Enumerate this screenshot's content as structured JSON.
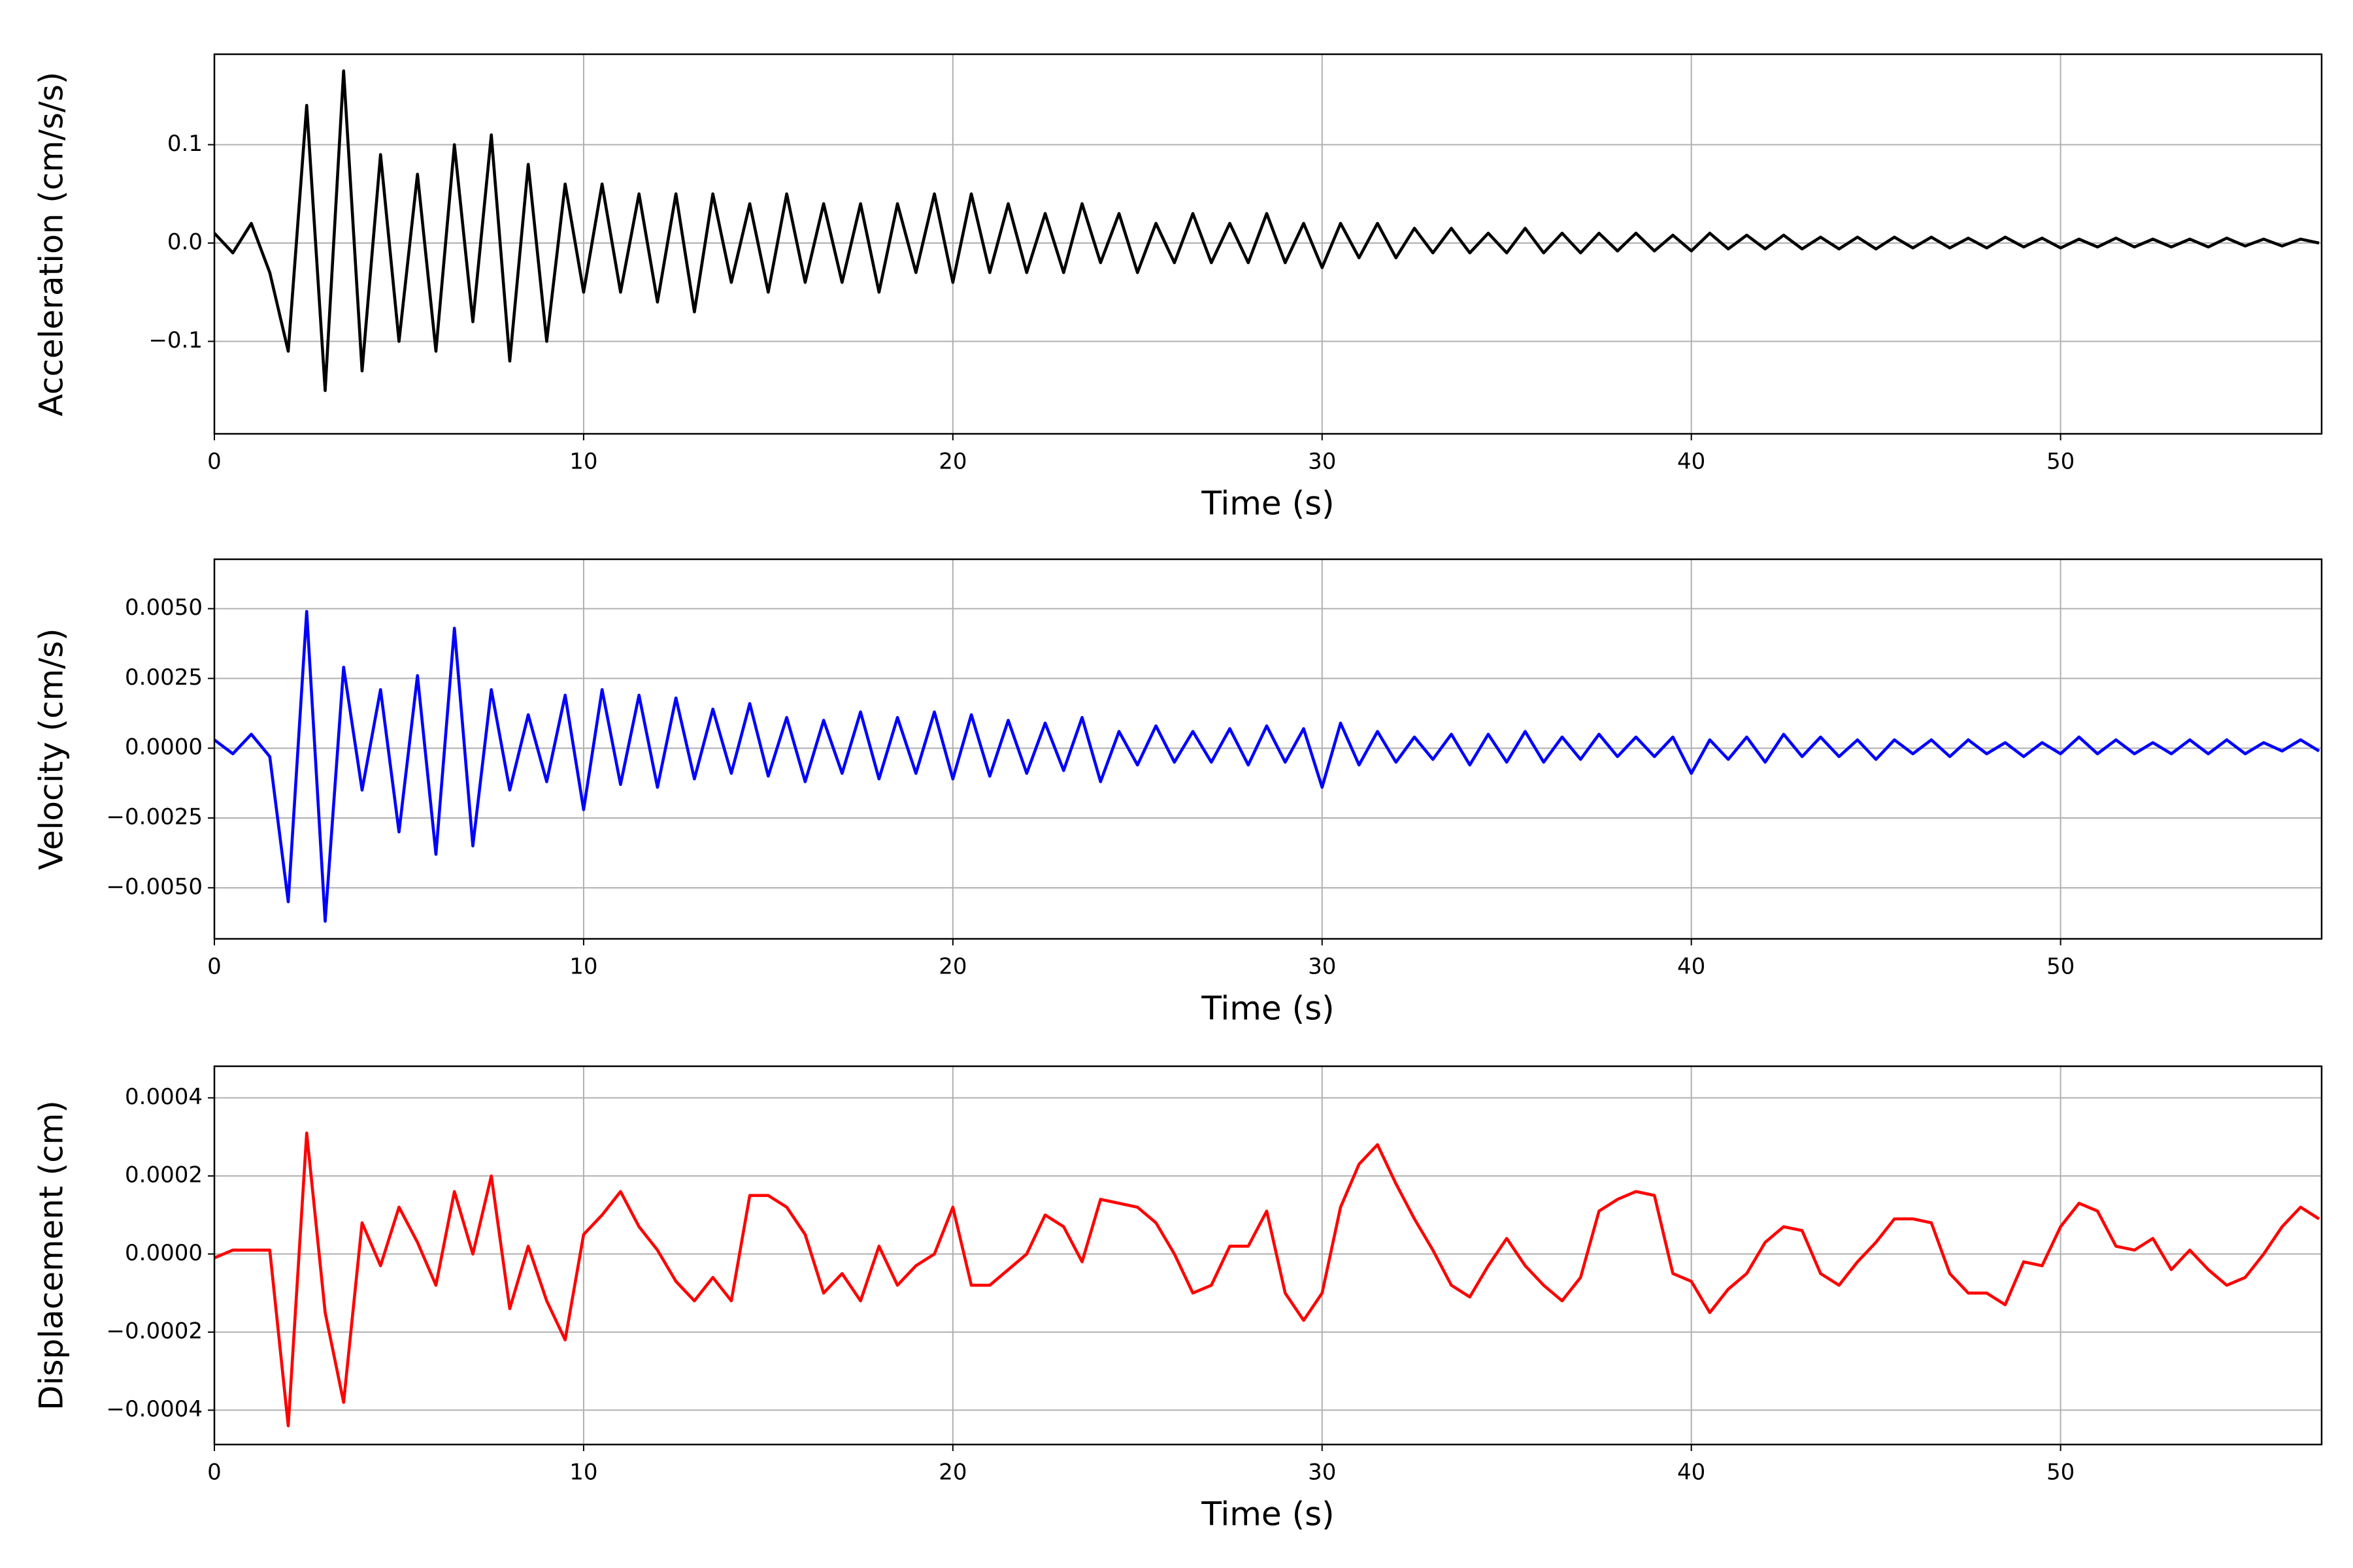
{
  "chart_data": [
    {
      "type": "line",
      "ylabel": "Acceleration (cm/s/s)",
      "xlabel": "Time (s)",
      "grid": true,
      "xlim": [
        0,
        57.07
      ],
      "xticks": [
        0,
        10,
        20,
        30,
        40,
        50
      ],
      "ylim": [
        -0.194,
        0.192
      ],
      "yticks": [
        {
          "value": -0.1,
          "label": "−0.1"
        },
        {
          "value": 0,
          "label": "0.0"
        },
        {
          "value": 0.1,
          "label": "0.1"
        }
      ],
      "x": [
        0,
        0.5,
        1,
        1.5,
        2,
        2.5,
        3,
        3.5,
        4,
        4.5,
        5,
        5.5,
        6,
        6.5,
        7,
        7.5,
        8,
        8.5,
        9,
        9.5,
        10,
        10.5,
        11,
        11.5,
        12,
        12.5,
        13,
        13.5,
        14,
        14.5,
        15,
        15.5,
        16,
        16.5,
        17,
        17.5,
        18,
        18.5,
        19,
        19.5,
        20,
        20.5,
        21,
        21.5,
        22,
        22.5,
        23,
        23.5,
        24,
        24.5,
        25,
        25.5,
        26,
        26.5,
        27,
        27.5,
        28,
        28.5,
        29,
        29.5,
        30,
        30.5,
        31,
        31.5,
        32,
        32.5,
        33,
        33.5,
        34,
        34.5,
        35,
        35.5,
        36,
        36.5,
        37,
        37.5,
        38,
        38.5,
        39,
        39.5,
        40,
        40.5,
        41,
        41.5,
        42,
        42.5,
        43,
        43.5,
        44,
        44.5,
        45,
        45.5,
        46,
        46.5,
        47,
        47.5,
        48,
        48.5,
        49,
        49.5,
        50,
        50.5,
        51,
        51.5,
        52,
        52.5,
        53,
        53.5,
        54,
        54.5,
        55,
        55.5,
        56,
        56.5,
        57
      ],
      "series": [
        {
          "color": "#000000",
          "values": [
            0.01,
            -0.01,
            0.02,
            -0.03,
            -0.11,
            0.14,
            -0.15,
            0.175,
            -0.13,
            0.09,
            -0.1,
            0.07,
            -0.11,
            0.1,
            -0.08,
            0.11,
            -0.12,
            0.08,
            -0.1,
            0.06,
            -0.05,
            0.06,
            -0.05,
            0.05,
            -0.06,
            0.05,
            -0.07,
            0.05,
            -0.04,
            0.04,
            -0.05,
            0.05,
            -0.04,
            0.04,
            -0.04,
            0.04,
            -0.05,
            0.04,
            -0.03,
            0.05,
            -0.04,
            0.05,
            -0.03,
            0.04,
            -0.03,
            0.03,
            -0.03,
            0.04,
            -0.02,
            0.03,
            -0.03,
            0.02,
            -0.02,
            0.03,
            -0.02,
            0.02,
            -0.02,
            0.03,
            -0.02,
            0.02,
            -0.025,
            0.02,
            -0.015,
            0.02,
            -0.015,
            0.015,
            -0.01,
            0.015,
            -0.01,
            0.01,
            -0.01,
            0.015,
            -0.01,
            0.01,
            -0.01,
            0.01,
            -0.008,
            0.01,
            -0.008,
            0.008,
            -0.008,
            0.01,
            -0.006,
            0.008,
            -0.006,
            0.008,
            -0.006,
            0.006,
            -0.006,
            0.006,
            -0.006,
            0.006,
            -0.005,
            0.006,
            -0.005,
            0.005,
            -0.005,
            0.006,
            -0.004,
            0.005,
            -0.005,
            0.004,
            -0.004,
            0.005,
            -0.004,
            0.004,
            -0.004,
            0.004,
            -0.004,
            0.005,
            -0.003,
            0.004,
            -0.003,
            0.004,
            0.0
          ]
        }
      ]
    },
    {
      "type": "line",
      "ylabel": "Velocity (cm/s)",
      "xlabel": "Time (s)",
      "grid": true,
      "xlim": [
        0,
        57.07
      ],
      "xticks": [
        0,
        10,
        20,
        30,
        40,
        50
      ],
      "ylim": [
        -0.00683,
        0.00677
      ],
      "yticks": [
        {
          "value": -0.005,
          "label": "−0.0050"
        },
        {
          "value": -0.0025,
          "label": "−0.0025"
        },
        {
          "value": 0,
          "label": "0.0000"
        },
        {
          "value": 0.0025,
          "label": "0.0025"
        },
        {
          "value": 0.005,
          "label": "0.0050"
        }
      ],
      "x": [
        0,
        0.5,
        1,
        1.5,
        2,
        2.5,
        3,
        3.5,
        4,
        4.5,
        5,
        5.5,
        6,
        6.5,
        7,
        7.5,
        8,
        8.5,
        9,
        9.5,
        10,
        10.5,
        11,
        11.5,
        12,
        12.5,
        13,
        13.5,
        14,
        14.5,
        15,
        15.5,
        16,
        16.5,
        17,
        17.5,
        18,
        18.5,
        19,
        19.5,
        20,
        20.5,
        21,
        21.5,
        22,
        22.5,
        23,
        23.5,
        24,
        24.5,
        25,
        25.5,
        26,
        26.5,
        27,
        27.5,
        28,
        28.5,
        29,
        29.5,
        30,
        30.5,
        31,
        31.5,
        32,
        32.5,
        33,
        33.5,
        34,
        34.5,
        35,
        35.5,
        36,
        36.5,
        37,
        37.5,
        38,
        38.5,
        39,
        39.5,
        40,
        40.5,
        41,
        41.5,
        42,
        42.5,
        43,
        43.5,
        44,
        44.5,
        45,
        45.5,
        46,
        46.5,
        47,
        47.5,
        48,
        48.5,
        49,
        49.5,
        50,
        50.5,
        51,
        51.5,
        52,
        52.5,
        53,
        53.5,
        54,
        54.5,
        55,
        55.5,
        56,
        56.5,
        57
      ],
      "series": [
        {
          "color": "#0000ff",
          "values": [
            0.0003,
            -0.0002,
            0.0005,
            -0.0003,
            -0.0055,
            0.0049,
            -0.0062,
            0.0029,
            -0.0015,
            0.0021,
            -0.003,
            0.0026,
            -0.0038,
            0.0043,
            -0.0035,
            0.0021,
            -0.0015,
            0.0012,
            -0.0012,
            0.0019,
            -0.0022,
            0.0021,
            -0.0013,
            0.0019,
            -0.0014,
            0.0018,
            -0.0011,
            0.0014,
            -0.0009,
            0.0016,
            -0.001,
            0.0011,
            -0.0012,
            0.001,
            -0.0009,
            0.0013,
            -0.0011,
            0.0011,
            -0.0009,
            0.0013,
            -0.0011,
            0.0012,
            -0.001,
            0.001,
            -0.0009,
            0.0009,
            -0.0008,
            0.0011,
            -0.0012,
            0.0006,
            -0.0006,
            0.0008,
            -0.0005,
            0.0006,
            -0.0005,
            0.0007,
            -0.0006,
            0.0008,
            -0.0005,
            0.0007,
            -0.0014,
            0.0009,
            -0.0006,
            0.0006,
            -0.0005,
            0.0004,
            -0.0004,
            0.0005,
            -0.0006,
            0.0005,
            -0.0005,
            0.0006,
            -0.0005,
            0.0004,
            -0.0004,
            0.0005,
            -0.0003,
            0.0004,
            -0.0003,
            0.0004,
            -0.0009,
            0.0003,
            -0.0004,
            0.0004,
            -0.0005,
            0.0005,
            -0.0003,
            0.0004,
            -0.0003,
            0.0003,
            -0.0004,
            0.0003,
            -0.0002,
            0.0003,
            -0.0003,
            0.0003,
            -0.0002,
            0.0002,
            -0.0003,
            0.0002,
            -0.0002,
            0.0004,
            -0.0002,
            0.0003,
            -0.0002,
            0.0002,
            -0.0002,
            0.0003,
            -0.0002,
            0.0003,
            -0.0002,
            0.0002,
            -0.0001,
            0.0003,
            -0.0001
          ]
        }
      ]
    },
    {
      "type": "line",
      "ylabel": "Displacement (cm)",
      "xlabel": "Time (s)",
      "grid": true,
      "xlim": [
        0,
        57.07
      ],
      "xticks": [
        0,
        10,
        20,
        30,
        40,
        50
      ],
      "ylim": [
        -0.000488,
        0.000481
      ],
      "yticks": [
        {
          "value": -0.0004,
          "label": "−0.0004"
        },
        {
          "value": -0.0002,
          "label": "−0.0002"
        },
        {
          "value": 0,
          "label": "0.0000"
        },
        {
          "value": 0.0002,
          "label": "0.0002"
        },
        {
          "value": 0.0004,
          "label": "0.0004"
        }
      ],
      "x": [
        0,
        0.5,
        1,
        1.5,
        2,
        2.5,
        3,
        3.5,
        4,
        4.5,
        5,
        5.5,
        6,
        6.5,
        7,
        7.5,
        8,
        8.5,
        9,
        9.5,
        10,
        10.5,
        11,
        11.5,
        12,
        12.5,
        13,
        13.5,
        14,
        14.5,
        15,
        15.5,
        16,
        16.5,
        17,
        17.5,
        18,
        18.5,
        19,
        19.5,
        20,
        20.5,
        21,
        21.5,
        22,
        22.5,
        23,
        23.5,
        24,
        24.5,
        25,
        25.5,
        26,
        26.5,
        27,
        27.5,
        28,
        28.5,
        29,
        29.5,
        30,
        30.5,
        31,
        31.5,
        32,
        32.5,
        33,
        33.5,
        34,
        34.5,
        35,
        35.5,
        36,
        36.5,
        37,
        37.5,
        38,
        38.5,
        39,
        39.5,
        40,
        40.5,
        41,
        41.5,
        42,
        42.5,
        43,
        43.5,
        44,
        44.5,
        45,
        45.5,
        46,
        46.5,
        47,
        47.5,
        48,
        48.5,
        49,
        49.5,
        50,
        50.5,
        51,
        51.5,
        52,
        52.5,
        53,
        53.5,
        54,
        54.5,
        55,
        55.5,
        56,
        56.5,
        57
      ],
      "series": [
        {
          "color": "#ff0000",
          "values": [
            -1e-05,
            1e-05,
            1e-05,
            1e-05,
            -0.00044,
            0.00031,
            -0.00015,
            -0.00038,
            8e-05,
            -3e-05,
            0.00012,
            3e-05,
            -8e-05,
            0.00016,
            0.0,
            0.0002,
            -0.00014,
            2e-05,
            -0.00012,
            -0.00022,
            5e-05,
            0.0001,
            0.00016,
            7e-05,
            1e-05,
            -7e-05,
            -0.00012,
            -6e-05,
            -0.00012,
            0.00015,
            0.00015,
            0.00012,
            5e-05,
            -0.0001,
            -5e-05,
            -0.00012,
            2e-05,
            -8e-05,
            -3e-05,
            0.0,
            0.00012,
            -8e-05,
            -8e-05,
            -4e-05,
            0.0,
            0.0001,
            7e-05,
            -2e-05,
            0.00014,
            0.00013,
            0.00012,
            8e-05,
            0.0,
            -0.0001,
            -8e-05,
            2e-05,
            2e-05,
            0.00011,
            -0.0001,
            -0.00017,
            -0.0001,
            0.00012,
            0.00023,
            0.00028,
            0.00018,
            9e-05,
            1e-05,
            -8e-05,
            -0.00011,
            -3e-05,
            4e-05,
            -3e-05,
            -8e-05,
            -0.00012,
            -6e-05,
            0.00011,
            0.00014,
            0.00016,
            0.00015,
            -5e-05,
            -7e-05,
            -0.00015,
            -9e-05,
            -5e-05,
            3e-05,
            7e-05,
            6e-05,
            -5e-05,
            -8e-05,
            -2e-05,
            3e-05,
            9e-05,
            9e-05,
            8e-05,
            -5e-05,
            -0.0001,
            -0.0001,
            -0.00013,
            -2e-05,
            -3e-05,
            7e-05,
            0.00013,
            0.00011,
            2e-05,
            1e-05,
            4e-05,
            -4e-05,
            1e-05,
            -4e-05,
            -8e-05,
            -6e-05,
            0.0,
            7e-05,
            0.00012,
            9e-05
          ]
        }
      ]
    }
  ]
}
